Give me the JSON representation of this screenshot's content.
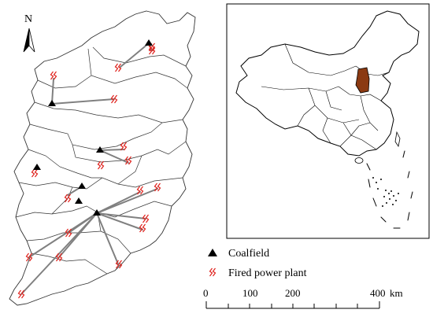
{
  "north_arrow": {
    "label": "N"
  },
  "legend": {
    "coalfield_label": "Coalfield",
    "power_plant_label": "Fired power plant"
  },
  "scale_bar": {
    "ticks": [
      "0",
      "100",
      "200",
      "400"
    ],
    "unit": "km"
  },
  "inset": {
    "highlight_color": "#8b3a12"
  },
  "colors": {
    "line": "#808080",
    "plant": "#e0201b",
    "coalfield": "#000000",
    "boundary": "#333333"
  }
}
